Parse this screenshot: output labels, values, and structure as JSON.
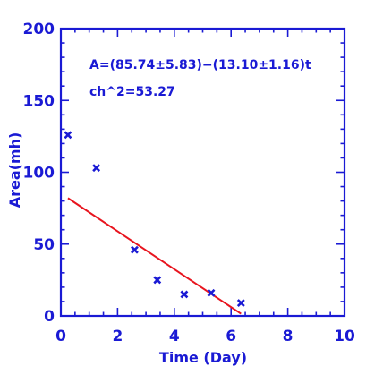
{
  "chart_data": {
    "type": "scatter",
    "xlabel": "Time (Day)",
    "ylabel": "Area(mh)",
    "xlim": [
      0,
      10
    ],
    "ylim": [
      0,
      200
    ],
    "x_ticks": [
      "0",
      "2",
      "4",
      "6",
      "8",
      "10"
    ],
    "y_ticks": [
      "0",
      "50",
      "100",
      "150",
      "200"
    ],
    "points": {
      "x": [
        0.25,
        1.25,
        2.6,
        3.4,
        4.35,
        5.3,
        6.35
      ],
      "y": [
        126,
        103,
        46,
        25,
        15,
        16,
        9
      ]
    },
    "fit_line": {
      "x": [
        0.25,
        6.35
      ],
      "y": [
        82,
        1.5
      ]
    },
    "annotations": [
      "A=(85.74±5.83)−(13.10±1.16)t",
      "ch^2=53.27"
    ],
    "colors": {
      "axes": "#1a1ad4",
      "points": "#1a1ad4",
      "fit": "#e8141e"
    }
  }
}
